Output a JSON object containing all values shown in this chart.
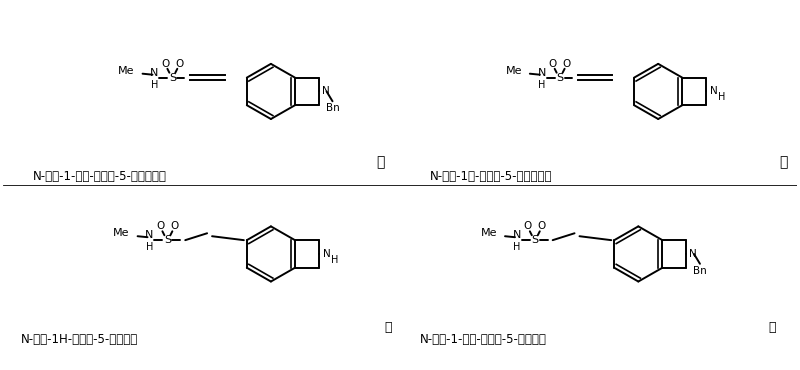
{
  "background_color": "#ffffff",
  "labels": {
    "top_left": "N-甲基-1-苄基-吲哚啉-5-乙烯磺酰胺",
    "top_right": "N-甲基-1氢-吲哚啉-5-乙烯磺酰胺",
    "bottom_left": "N-甲基-1H-吲哚啉-5-乙磺酰胺",
    "bottom_right": "N-甲基-1-苄基-吲哚啉-5-乙磺酰胺",
    "sep_top": "、",
    "sep_bottom": "、",
    "or_word": "或",
    "period": "。"
  }
}
